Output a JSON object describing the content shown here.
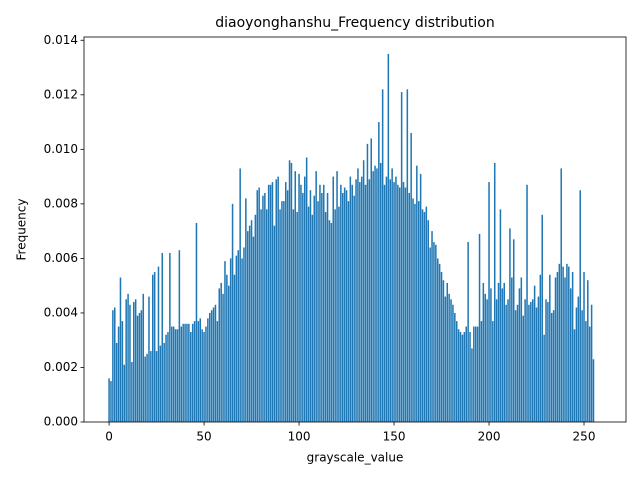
{
  "chart_data": {
    "type": "bar",
    "title": "diaoyonghanshu_Frequency distribution",
    "xlabel": "grayscale_value",
    "ylabel": "Frequency",
    "color": "#1f77b4",
    "bar_width": 0.8,
    "xlim": [
      -13.2,
      272.1
    ],
    "ylim": [
      0,
      0.01412
    ],
    "xticks": [
      0,
      50,
      100,
      150,
      200,
      250
    ],
    "yticks": [
      {
        "value": 0,
        "label": "0.000"
      },
      0.002,
      0.004,
      0.006,
      0.008,
      {
        "value": 0.01,
        "label": "0.010"
      },
      0.012,
      0.014
    ],
    "x": [
      0,
      1,
      2,
      3,
      4,
      5,
      6,
      7,
      8,
      9,
      10,
      11,
      12,
      13,
      14,
      15,
      16,
      17,
      18,
      19,
      20,
      21,
      22,
      23,
      24,
      25,
      26,
      27,
      28,
      29,
      30,
      31,
      32,
      33,
      34,
      35,
      36,
      37,
      38,
      39,
      40,
      41,
      42,
      43,
      44,
      45,
      46,
      47,
      48,
      49,
      50,
      51,
      52,
      53,
      54,
      55,
      56,
      57,
      58,
      59,
      60,
      61,
      62,
      63,
      64,
      65,
      66,
      67,
      68,
      69,
      70,
      71,
      72,
      73,
      74,
      75,
      76,
      77,
      78,
      79,
      80,
      81,
      82,
      83,
      84,
      85,
      86,
      87,
      88,
      89,
      90,
      91,
      92,
      93,
      94,
      95,
      96,
      97,
      98,
      99,
      100,
      101,
      102,
      103,
      104,
      105,
      106,
      107,
      108,
      109,
      110,
      111,
      112,
      113,
      114,
      115,
      116,
      117,
      118,
      119,
      120,
      121,
      122,
      123,
      124,
      125,
      126,
      127,
      128,
      129,
      130,
      131,
      132,
      133,
      134,
      135,
      136,
      137,
      138,
      139,
      140,
      141,
      142,
      143,
      144,
      145,
      146,
      147,
      148,
      149,
      150,
      151,
      152,
      153,
      154,
      155,
      156,
      157,
      158,
      159,
      160,
      161,
      162,
      163,
      164,
      165,
      166,
      167,
      168,
      169,
      170,
      171,
      172,
      173,
      174,
      175,
      176,
      177,
      178,
      179,
      180,
      181,
      182,
      183,
      184,
      185,
      186,
      187,
      188,
      189,
      190,
      191,
      192,
      193,
      194,
      195,
      196,
      197,
      198,
      199,
      200,
      201,
      202,
      203,
      204,
      205,
      206,
      207,
      208,
      209,
      210,
      211,
      212,
      213,
      214,
      215,
      216,
      217,
      218,
      219,
      220,
      221,
      222,
      223,
      224,
      225,
      226,
      227,
      228,
      229,
      230,
      231,
      232,
      233,
      234,
      235,
      236,
      237,
      238,
      239,
      240,
      241,
      242,
      243,
      244,
      245,
      246,
      247,
      248,
      249,
      250,
      251,
      252,
      253,
      254,
      255
    ],
    "values": [
      0.0016,
      0.0015,
      0.0041,
      0.0042,
      0.0029,
      0.0035,
      0.0053,
      0.0037,
      0.0021,
      0.0045,
      0.0047,
      0.0043,
      0.0022,
      0.0044,
      0.0045,
      0.0039,
      0.004,
      0.0041,
      0.0047,
      0.0024,
      0.0025,
      0.0046,
      0.0026,
      0.0054,
      0.0055,
      0.0026,
      0.0057,
      0.0028,
      0.0062,
      0.0029,
      0.0032,
      0.0033,
      0.0062,
      0.0035,
      0.0035,
      0.0034,
      0.0034,
      0.0063,
      0.0035,
      0.0036,
      0.0036,
      0.0036,
      0.0036,
      0.0033,
      0.0036,
      0.0037,
      0.0073,
      0.0037,
      0.0038,
      0.0034,
      0.0033,
      0.0035,
      0.0038,
      0.004,
      0.0041,
      0.0042,
      0.0043,
      0.0037,
      0.0049,
      0.0051,
      0.0047,
      0.0059,
      0.0054,
      0.005,
      0.006,
      0.008,
      0.0054,
      0.0061,
      0.0063,
      0.0093,
      0.006,
      0.0064,
      0.0082,
      0.007,
      0.0072,
      0.0074,
      0.0068,
      0.0076,
      0.0085,
      0.0086,
      0.0078,
      0.0083,
      0.0084,
      0.0078,
      0.0087,
      0.0087,
      0.0088,
      0.0072,
      0.0089,
      0.009,
      0.0078,
      0.0081,
      0.0081,
      0.0088,
      0.0085,
      0.0096,
      0.0095,
      0.0078,
      0.0092,
      0.0077,
      0.0091,
      0.0087,
      0.0084,
      0.009,
      0.0097,
      0.0079,
      0.0085,
      0.0076,
      0.0083,
      0.0092,
      0.0081,
      0.0087,
      0.0084,
      0.0087,
      0.0077,
      0.0084,
      0.0074,
      0.0073,
      0.009,
      0.0078,
      0.0092,
      0.0079,
      0.0087,
      0.0084,
      0.0086,
      0.0085,
      0.0081,
      0.009,
      0.0087,
      0.0083,
      0.0089,
      0.0093,
      0.0088,
      0.009,
      0.0096,
      0.0087,
      0.0102,
      0.0089,
      0.0104,
      0.0092,
      0.0094,
      0.0093,
      0.011,
      0.0095,
      0.0122,
      0.0087,
      0.009,
      0.0135,
      0.0089,
      0.0093,
      0.0088,
      0.009,
      0.0087,
      0.0086,
      0.0121,
      0.0088,
      0.0086,
      0.0122,
      0.0084,
      0.0106,
      0.0082,
      0.008,
      0.0094,
      0.0081,
      0.0091,
      0.0078,
      0.0077,
      0.0079,
      0.0074,
      0.0064,
      0.007,
      0.0066,
      0.0065,
      0.006,
      0.0058,
      0.0055,
      0.0052,
      0.0046,
      0.0051,
      0.0047,
      0.0045,
      0.0043,
      0.004,
      0.0037,
      0.0034,
      0.0033,
      0.0032,
      0.0033,
      0.0035,
      0.0066,
      0.0033,
      0.0027,
      0.0035,
      0.0035,
      0.0035,
      0.0069,
      0.0037,
      0.0051,
      0.0047,
      0.0045,
      0.0088,
      0.0049,
      0.0037,
      0.0095,
      0.0045,
      0.0051,
      0.0078,
      0.0049,
      0.0051,
      0.0043,
      0.0045,
      0.0071,
      0.0053,
      0.0067,
      0.0041,
      0.0043,
      0.0049,
      0.0053,
      0.0039,
      0.0045,
      0.0087,
      0.0043,
      0.0044,
      0.0045,
      0.005,
      0.0042,
      0.0046,
      0.0054,
      0.0076,
      0.0032,
      0.0045,
      0.0044,
      0.0054,
      0.004,
      0.0041,
      0.0053,
      0.0055,
      0.0058,
      0.0093,
      0.0057,
      0.0053,
      0.0058,
      0.0057,
      0.0049,
      0.0055,
      0.0034,
      0.0042,
      0.0046,
      0.0085,
      0.0041,
      0.0055,
      0.0037,
      0.0052,
      0.0035,
      0.0043,
      0.0023
    ]
  }
}
